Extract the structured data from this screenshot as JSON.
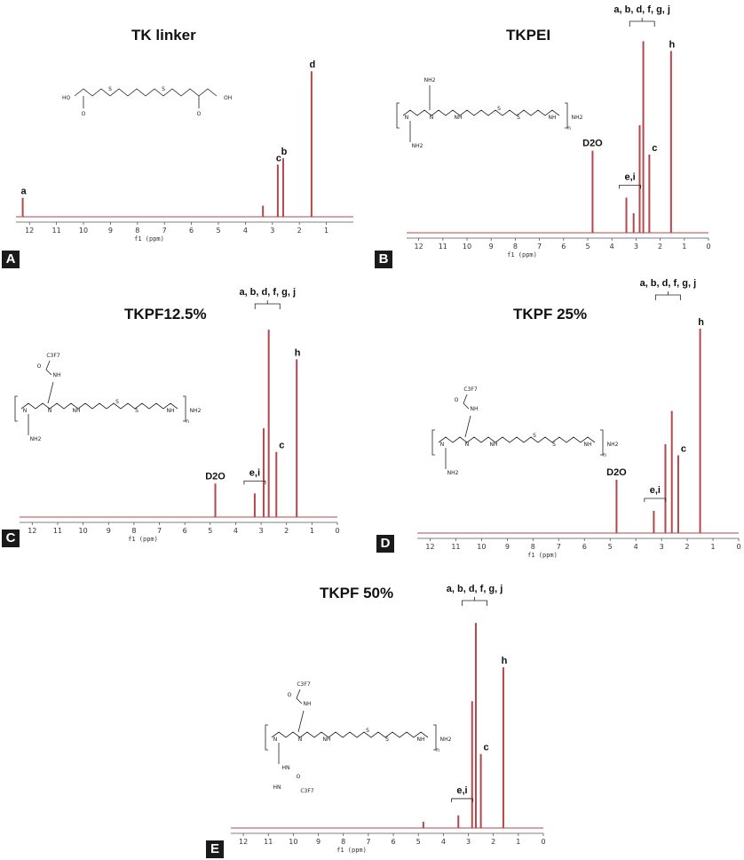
{
  "colors": {
    "spectrum": "#b3474c",
    "text": "#111111",
    "badge_bg": "#1a1a1a"
  },
  "chart_data": [
    {
      "type": "line",
      "panel": "A",
      "title": "TK linker",
      "xlabel": "f1 (ppm)",
      "xlim": [
        12.5,
        0
      ],
      "x_ticks": [
        "12",
        "11",
        "10",
        "9",
        "8",
        "7",
        "6",
        "5",
        "4",
        "3",
        "2",
        "1"
      ],
      "peaks": [
        {
          "ppm": 12.25,
          "height": 0.12,
          "label": "a"
        },
        {
          "ppm": 3.35,
          "height": 0.07
        },
        {
          "ppm": 2.8,
          "height": 0.33,
          "label": "c"
        },
        {
          "ppm": 2.6,
          "height": 0.37,
          "label": "b"
        },
        {
          "ppm": 1.55,
          "height": 0.92,
          "label": "d"
        }
      ],
      "structure_labels": [
        "a",
        "c",
        "b",
        "d",
        "d",
        "c",
        "b",
        "a"
      ]
    },
    {
      "type": "line",
      "panel": "B",
      "title": "TKPEI",
      "xlabel": "f1 (ppm)",
      "xlim": [
        12.5,
        0
      ],
      "x_ticks": [
        "12",
        "11",
        "10",
        "9",
        "8",
        "7",
        "6",
        "5",
        "4",
        "3",
        "2",
        "1",
        "0"
      ],
      "peaks": [
        {
          "ppm": 4.8,
          "height": 0.42,
          "label": "D2O"
        },
        {
          "ppm": 3.4,
          "height": 0.18
        },
        {
          "ppm": 3.1,
          "height": 0.1
        },
        {
          "ppm": 2.85,
          "height": 0.55
        },
        {
          "ppm": 2.7,
          "height": 0.98
        },
        {
          "ppm": 2.45,
          "height": 0.4
        },
        {
          "ppm": 1.55,
          "height": 0.93,
          "label": "h"
        }
      ],
      "annotations": [
        "a, b, d, f, g, j",
        "c",
        "e,i"
      ]
    },
    {
      "type": "line",
      "panel": "C",
      "title": "TKPF12.5%",
      "xlabel": "f1 (ppm)",
      "xlim": [
        12.5,
        0
      ],
      "x_ticks": [
        "12",
        "11",
        "10",
        "9",
        "8",
        "7",
        "6",
        "5",
        "4",
        "3",
        "2",
        "1",
        "0"
      ],
      "peaks": [
        {
          "ppm": 4.8,
          "height": 0.17,
          "label": "D2O"
        },
        {
          "ppm": 3.25,
          "height": 0.12
        },
        {
          "ppm": 2.9,
          "height": 0.45
        },
        {
          "ppm": 2.7,
          "height": 0.95
        },
        {
          "ppm": 2.4,
          "height": 0.33
        },
        {
          "ppm": 1.6,
          "height": 0.8,
          "label": "h"
        }
      ],
      "annotations": [
        "a, b, d, f, g, j",
        "c",
        "e,i"
      ]
    },
    {
      "type": "line",
      "panel": "D",
      "title": "TKPF 25%",
      "xlabel": "f1 (ppm)",
      "xlim": [
        12.5,
        0
      ],
      "x_ticks": [
        "12",
        "11",
        "10",
        "9",
        "8",
        "7",
        "6",
        "5",
        "4",
        "3",
        "2",
        "1",
        "0"
      ],
      "peaks": [
        {
          "ppm": 4.75,
          "height": 0.24,
          "label": "D2O"
        },
        {
          "ppm": 3.3,
          "height": 0.1
        },
        {
          "ppm": 2.85,
          "height": 0.4
        },
        {
          "ppm": 2.6,
          "height": 0.55
        },
        {
          "ppm": 2.35,
          "height": 0.35
        },
        {
          "ppm": 1.5,
          "height": 0.92,
          "label": "h"
        }
      ],
      "annotations": [
        "a, b, d, f, g, j",
        "c",
        "e,i"
      ]
    },
    {
      "type": "line",
      "panel": "E",
      "title": "TKPF 50%",
      "xlabel": "f1 (ppm)",
      "xlim": [
        12.5,
        0
      ],
      "x_ticks": [
        "12",
        "11",
        "10",
        "9",
        "8",
        "7",
        "6",
        "5",
        "4",
        "3",
        "2",
        "1",
        "0"
      ],
      "peaks": [
        {
          "ppm": 4.8,
          "height": 0.03
        },
        {
          "ppm": 3.4,
          "height": 0.06
        },
        {
          "ppm": 2.85,
          "height": 0.6
        },
        {
          "ppm": 2.7,
          "height": 0.97
        },
        {
          "ppm": 2.5,
          "height": 0.35
        },
        {
          "ppm": 1.6,
          "height": 0.76,
          "label": "h"
        }
      ],
      "annotations": [
        "a, b, d, f, g, j",
        "c",
        "e,i"
      ]
    }
  ],
  "molecules": {
    "tk_linker": [
      "HO",
      "OH",
      "S",
      "S",
      "O",
      "O"
    ],
    "tkpei": [
      "NH2",
      "N",
      "N",
      "NH",
      "S",
      "S",
      "NH",
      "NH2",
      "NH2",
      "n"
    ],
    "tkpf125": [
      "C3F7",
      "O",
      "NH",
      "N",
      "N",
      "NH",
      "S",
      "S",
      "NH",
      "NH2",
      "NH2",
      "n"
    ],
    "tkpf25": [
      "C3F7",
      "O",
      "NH",
      "N",
      "N",
      "NH",
      "S",
      "S",
      "NH",
      "NH2",
      "NH2",
      "n"
    ],
    "tkpf50": [
      "C3F7",
      "O",
      "NH",
      "N",
      "N",
      "NH",
      "S",
      "S",
      "NH",
      "NH2",
      "HN",
      "O",
      "HN",
      "C3F7",
      "n"
    ]
  }
}
